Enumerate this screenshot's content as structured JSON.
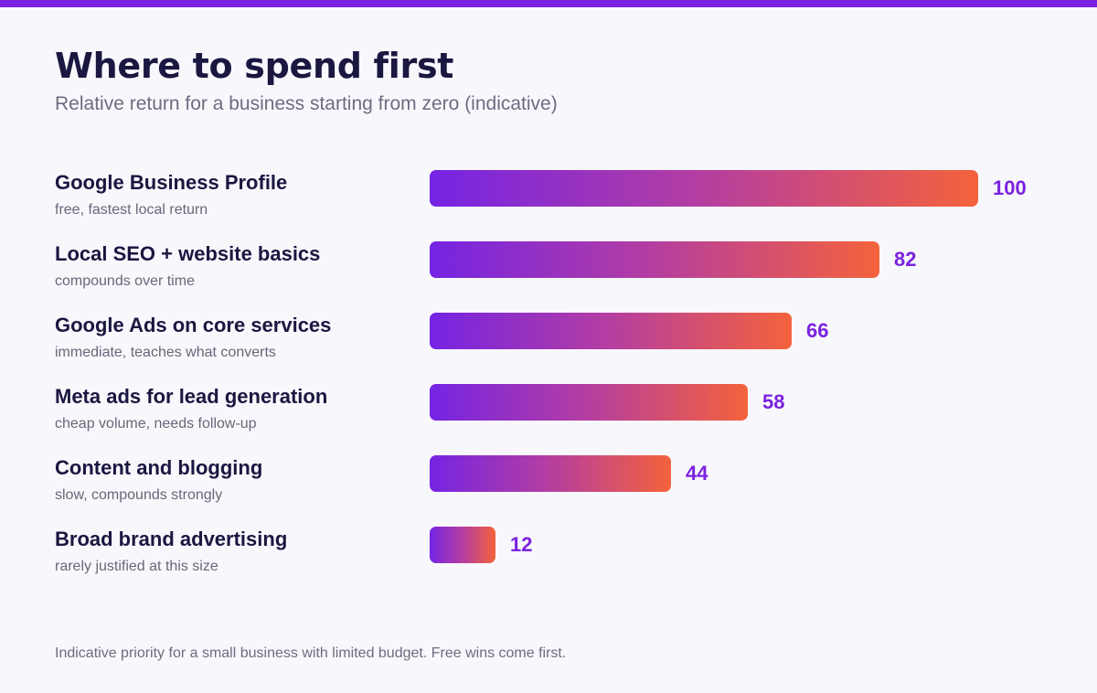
{
  "colors": {
    "accent": "#7a22e0",
    "bar_gradient_start": "#7524e4",
    "bar_gradient_end": "#f4623b",
    "title": "#1a1740",
    "muted_text": "#6f6b80",
    "background": "#f8f7fc"
  },
  "header": {
    "title": "Where to spend first",
    "subtitle": "Relative return for a business starting from zero (indicative)"
  },
  "footer": {
    "note": "Indicative priority for a small business with limited budget. Free wins come first."
  },
  "chart_data": {
    "type": "bar",
    "orientation": "horizontal",
    "title": "Where to spend first",
    "subtitle": "Relative return for a business starting from zero (indicative)",
    "xlim": [
      0,
      100
    ],
    "grid": false,
    "legend": "none",
    "categories": [
      "Google Business Profile",
      "Local SEO + website basics",
      "Google Ads on core services",
      "Meta ads for lead generation",
      "Content and blogging",
      "Broad brand advertising"
    ],
    "notes": [
      "free, fastest local return",
      "compounds over time",
      "immediate, teaches what converts",
      "cheap volume, needs follow-up",
      "slow, compounds strongly",
      "rarely justified at this size"
    ],
    "values": [
      100,
      82,
      66,
      58,
      44,
      12
    ]
  }
}
